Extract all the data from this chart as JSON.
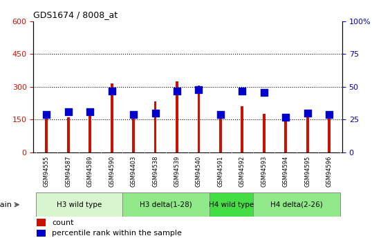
{
  "title": "GDS1674 / 8008_at",
  "samples": [
    "GSM94555",
    "GSM94587",
    "GSM94589",
    "GSM94590",
    "GSM94403",
    "GSM94538",
    "GSM94539",
    "GSM94540",
    "GSM94591",
    "GSM94592",
    "GSM94593",
    "GSM94594",
    "GSM94595",
    "GSM94596"
  ],
  "count_values": [
    162,
    162,
    178,
    314,
    165,
    232,
    326,
    306,
    170,
    212,
    178,
    162,
    178,
    178
  ],
  "percentile_values": [
    29,
    31,
    31,
    47,
    29,
    30,
    47,
    48,
    29,
    47,
    46,
    27,
    30,
    29
  ],
  "groups": [
    {
      "label": "H3 wild type",
      "start": 0,
      "end": 3,
      "color": "#d8f5d0"
    },
    {
      "label": "H3 delta(1-28)",
      "start": 4,
      "end": 7,
      "color": "#90e888"
    },
    {
      "label": "H4 wild type",
      "start": 8,
      "end": 9,
      "color": "#44dd44"
    },
    {
      "label": "H4 delta(2-26)",
      "start": 10,
      "end": 13,
      "color": "#90e888"
    }
  ],
  "left_ylim": [
    0,
    600
  ],
  "right_ylim": [
    0,
    100
  ],
  "left_yticks": [
    0,
    150,
    300,
    450,
    600
  ],
  "right_yticks": [
    0,
    25,
    50,
    75,
    100
  ],
  "right_yticklabels": [
    "0",
    "25",
    "50",
    "75",
    "100%"
  ],
  "bar_color_red": "#cc1100",
  "bar_color_blue": "#0000cc",
  "bar_width": 0.12,
  "blue_marker_size": 60,
  "grid_color": "black",
  "plot_bg": "#ffffff",
  "tick_label_bg": "#d0d0d0",
  "ylabel_left_color": "#cc1100",
  "ylabel_right_color": "#0000bb"
}
